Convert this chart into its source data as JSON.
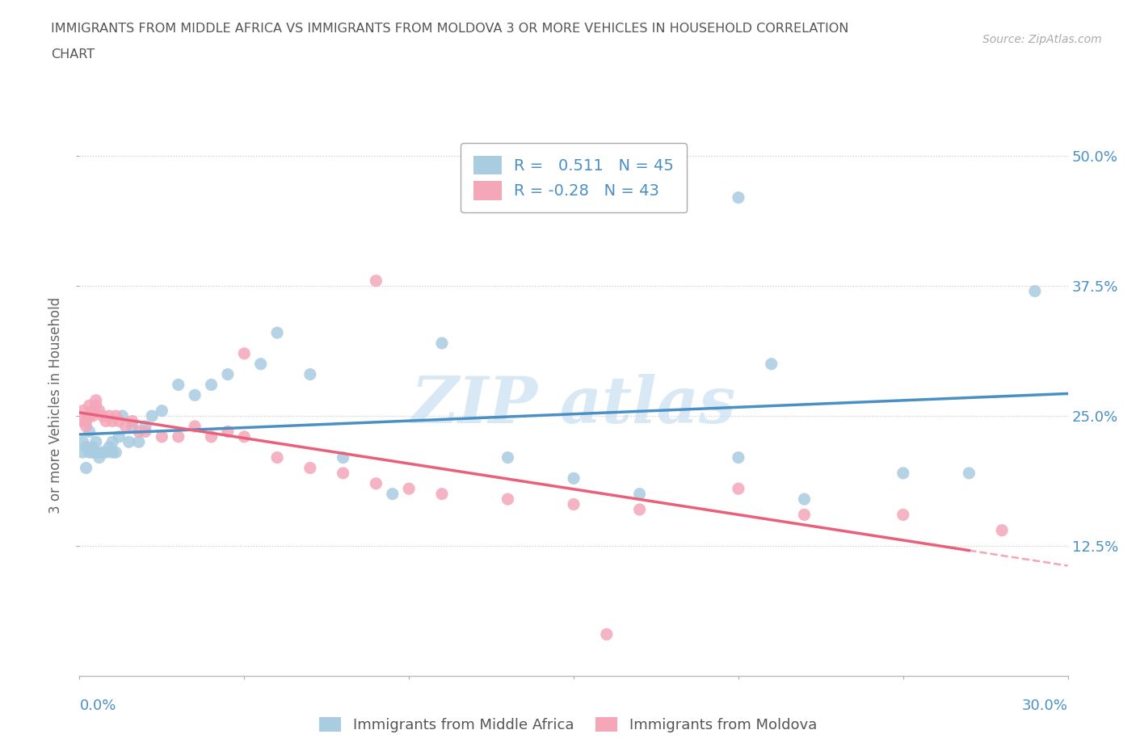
{
  "title_line1": "IMMIGRANTS FROM MIDDLE AFRICA VS IMMIGRANTS FROM MOLDOVA 3 OR MORE VEHICLES IN HOUSEHOLD CORRELATION",
  "title_line2": "CHART",
  "source": "Source: ZipAtlas.com",
  "ylabel_label": "3 or more Vehicles in Household",
  "legend_labels": [
    "Immigrants from Middle Africa",
    "Immigrants from Moldova"
  ],
  "r1": 0.511,
  "n1": 45,
  "r2": -0.28,
  "n2": 43,
  "color_blue": "#a8cce0",
  "color_pink": "#f4a7b9",
  "color_blue_line": "#4a90c4",
  "color_pink_line": "#e8607a",
  "xlim": [
    0.0,
    0.3
  ],
  "ylim": [
    0.0,
    0.52
  ],
  "x_label_ticks": [
    0.0,
    0.05,
    0.1,
    0.15,
    0.2,
    0.25,
    0.3
  ],
  "y_tick_vals": [
    0.125,
    0.25,
    0.375,
    0.5
  ],
  "y_tick_labels": [
    "12.5%",
    "25.0%",
    "37.5%",
    "50.0%"
  ],
  "blue_scatter_x": [
    0.001,
    0.001,
    0.002,
    0.002,
    0.003,
    0.003,
    0.004,
    0.004,
    0.005,
    0.005,
    0.006,
    0.007,
    0.008,
    0.009,
    0.01,
    0.01,
    0.011,
    0.012,
    0.013,
    0.015,
    0.016,
    0.018,
    0.02,
    0.022,
    0.025,
    0.03,
    0.035,
    0.04,
    0.045,
    0.055,
    0.06,
    0.07,
    0.08,
    0.095,
    0.11,
    0.13,
    0.15,
    0.17,
    0.2,
    0.21,
    0.22,
    0.25,
    0.27,
    0.29,
    0.2
  ],
  "blue_scatter_y": [
    0.215,
    0.225,
    0.2,
    0.22,
    0.215,
    0.235,
    0.22,
    0.215,
    0.215,
    0.225,
    0.21,
    0.215,
    0.215,
    0.22,
    0.215,
    0.225,
    0.215,
    0.23,
    0.25,
    0.225,
    0.24,
    0.225,
    0.24,
    0.25,
    0.255,
    0.28,
    0.27,
    0.28,
    0.29,
    0.3,
    0.33,
    0.29,
    0.21,
    0.175,
    0.32,
    0.21,
    0.19,
    0.175,
    0.21,
    0.3,
    0.17,
    0.195,
    0.195,
    0.37,
    0.46
  ],
  "pink_scatter_x": [
    0.001,
    0.001,
    0.002,
    0.002,
    0.003,
    0.003,
    0.004,
    0.004,
    0.005,
    0.005,
    0.006,
    0.007,
    0.008,
    0.009,
    0.01,
    0.011,
    0.012,
    0.014,
    0.016,
    0.018,
    0.02,
    0.025,
    0.03,
    0.035,
    0.04,
    0.045,
    0.05,
    0.06,
    0.07,
    0.08,
    0.09,
    0.1,
    0.11,
    0.13,
    0.15,
    0.17,
    0.2,
    0.22,
    0.25,
    0.28,
    0.05,
    0.09,
    0.16
  ],
  "pink_scatter_y": [
    0.245,
    0.255,
    0.24,
    0.245,
    0.25,
    0.26,
    0.25,
    0.255,
    0.26,
    0.265,
    0.255,
    0.25,
    0.245,
    0.25,
    0.245,
    0.25,
    0.245,
    0.24,
    0.245,
    0.235,
    0.235,
    0.23,
    0.23,
    0.24,
    0.23,
    0.235,
    0.23,
    0.21,
    0.2,
    0.195,
    0.185,
    0.18,
    0.175,
    0.17,
    0.165,
    0.16,
    0.18,
    0.155,
    0.155,
    0.14,
    0.31,
    0.38,
    0.04
  ]
}
